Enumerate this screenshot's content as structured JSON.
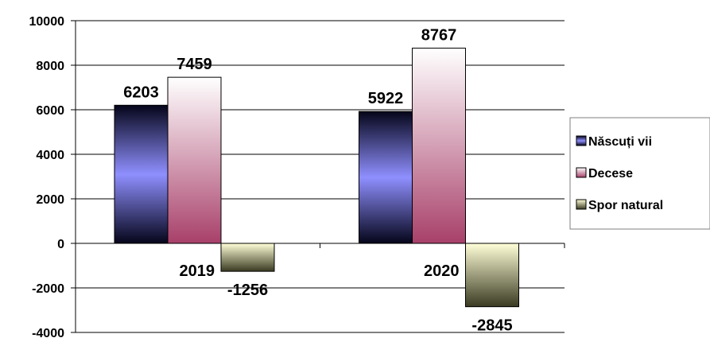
{
  "chart_data": {
    "type": "bar",
    "categories": [
      "2019",
      "2020"
    ],
    "series": [
      {
        "name": "Născuți vii",
        "values": [
          6203,
          5922
        ],
        "color": "#8f8fff"
      },
      {
        "name": "Decese",
        "values": [
          7459,
          8767
        ],
        "color": "#b0506f"
      },
      {
        "name": "Spor natural",
        "values": [
          -1256,
          -2845
        ],
        "color": "#f2f2c8"
      }
    ],
    "ylim": [
      -4000,
      10000
    ],
    "yticks": [
      "-4000",
      "-2000",
      "0",
      "2000",
      "4000",
      "6000",
      "8000",
      "10000"
    ],
    "grid": true,
    "legend_position": "right"
  }
}
